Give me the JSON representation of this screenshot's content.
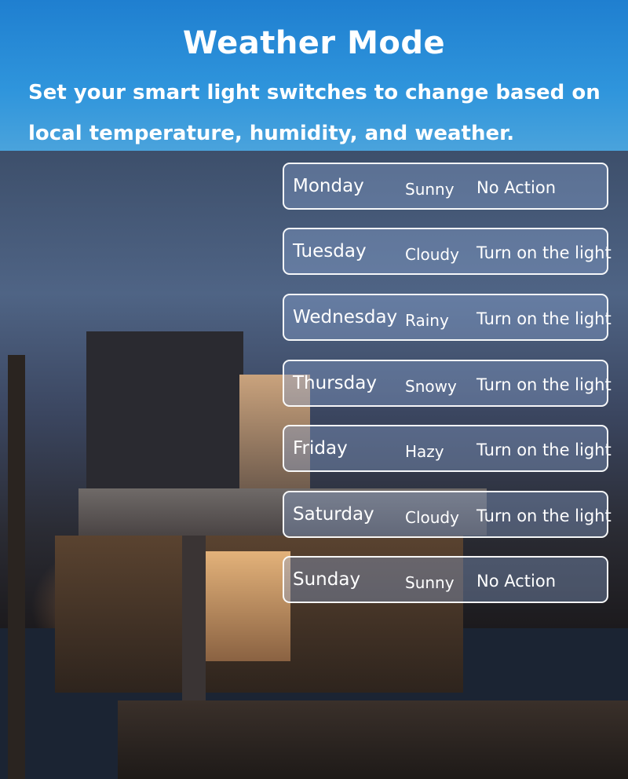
{
  "header": {
    "title": "Weather Mode",
    "subtitle": "Set your smart light switches to change based on local temperature, humidity, and weather."
  },
  "colors": {
    "header_blue": "#2f95dc",
    "row_border": "#ffffff"
  },
  "schedule": [
    {
      "day": "Monday",
      "weather": "Sunny",
      "action": "No Action"
    },
    {
      "day": "Tuesday",
      "weather": "Cloudy",
      "action": "Turn on the light"
    },
    {
      "day": "Wednesday",
      "weather": "Rainy",
      "action": "Turn on the light"
    },
    {
      "day": "Thursday",
      "weather": "Snowy",
      "action": "Turn on the light"
    },
    {
      "day": "Friday",
      "weather": "Hazy",
      "action": "Turn on the light"
    },
    {
      "day": "Saturday",
      "weather": "Cloudy",
      "action": "Turn on the light"
    },
    {
      "day": "Sunday",
      "weather": "Sunny",
      "action": "No Action"
    }
  ]
}
